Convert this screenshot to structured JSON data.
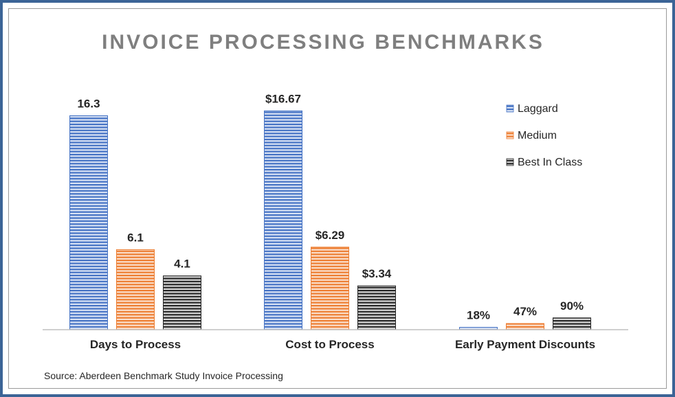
{
  "chart_data": {
    "type": "bar",
    "title": "INVOICE PROCESSING BENCHMARKS",
    "categories": [
      "Days to Process",
      "Cost to Process",
      "Early Payment Discounts"
    ],
    "series": [
      {
        "name": "Laggard",
        "values": [
          16.3,
          16.67,
          0.18
        ],
        "labels": [
          "16.3",
          "$16.67",
          "18%"
        ],
        "color": "#4472c4",
        "stripe": "#dbe4f5"
      },
      {
        "name": "Medium",
        "values": [
          6.1,
          6.29,
          0.47
        ],
        "labels": [
          "6.1",
          "$6.29",
          "47%"
        ],
        "color": "#ed7d31",
        "stripe": "#fbe1cf"
      },
      {
        "name": "Best In Class",
        "values": [
          4.1,
          3.34,
          0.9
        ],
        "labels": [
          "4.1",
          "$3.34",
          "90%"
        ],
        "color": "#262626",
        "stripe": "#d9d9d9"
      }
    ],
    "legend": "top-right",
    "grid": false,
    "ylim": [
      0,
      18
    ]
  },
  "source": "Source:  Aberdeen Benchmark Study Invoice Processing"
}
